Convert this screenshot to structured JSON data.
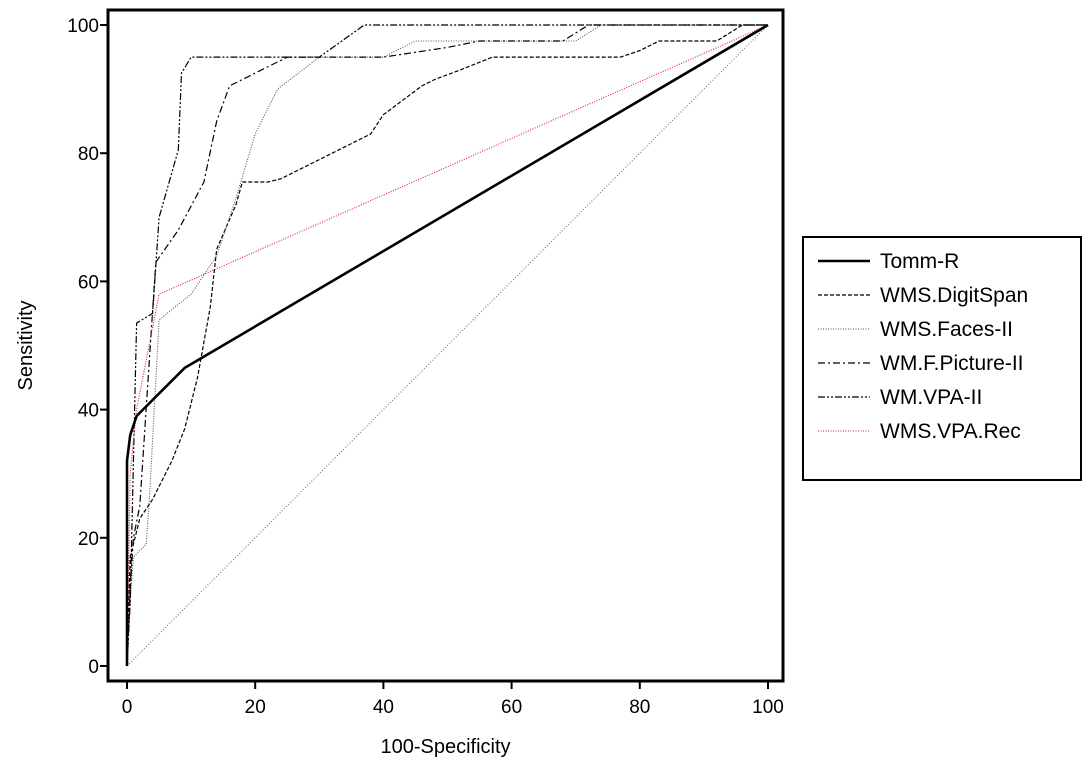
{
  "chart_data": {
    "type": "line",
    "title": "",
    "xlabel": "100-Specificity",
    "ylabel": "Sensitivity",
    "xlim": [
      0,
      100
    ],
    "ylim": [
      0,
      100
    ],
    "xticks": [
      "0",
      "20",
      "40",
      "60",
      "80",
      "100"
    ],
    "yticks": [
      "0",
      "20",
      "40",
      "60",
      "80",
      "100"
    ],
    "grid": false,
    "legend_position": "right",
    "reference_line": {
      "x": [
        0,
        100
      ],
      "y": [
        0,
        100
      ],
      "style": "dotted"
    },
    "series": [
      {
        "name": "Tomm-R",
        "color": "#000000",
        "style": "solid-thick",
        "x": [
          0,
          0,
          0.5,
          1.5,
          9,
          100
        ],
        "y": [
          0,
          32,
          36,
          39,
          46.5,
          100
        ]
      },
      {
        "name": "WMS.DigitSpan",
        "color": "#000000",
        "style": "dashed",
        "x": [
          0,
          0.5,
          2,
          4,
          7,
          9,
          11,
          13,
          14,
          17,
          18,
          22,
          24,
          30,
          38,
          40,
          46,
          48,
          52,
          57,
          60,
          70,
          77,
          80,
          83,
          86,
          92,
          96,
          100
        ],
        "y": [
          0,
          17,
          23,
          26,
          32,
          37,
          45,
          56,
          65,
          72,
          75.5,
          75.5,
          76,
          79,
          83,
          86,
          90.5,
          91.5,
          93,
          95,
          95,
          95,
          95,
          96,
          97.5,
          97.5,
          97.5,
          100,
          100
        ]
      },
      {
        "name": "WMS.Faces-II",
        "color": "#555555",
        "style": "dotted",
        "x": [
          0,
          0.5,
          1,
          3,
          3.5,
          5,
          10,
          14,
          17,
          20,
          22,
          23.5,
          30,
          35,
          40,
          45,
          50,
          55,
          60,
          65,
          70,
          74,
          78,
          100
        ],
        "y": [
          0,
          10,
          17,
          19,
          26,
          54,
          58,
          64,
          73,
          83,
          87,
          90,
          95,
          95,
          95,
          97.5,
          97.5,
          97.5,
          97.5,
          97.5,
          97.5,
          100,
          100,
          100
        ]
      },
      {
        "name": "WM.F.Picture-II",
        "color": "#000000",
        "style": "dash-dot",
        "x": [
          0,
          0.5,
          1,
          2,
          4.5,
          8,
          12,
          14,
          16,
          20,
          25,
          30,
          40,
          50,
          55,
          62,
          68,
          72,
          80,
          100
        ],
        "y": [
          0,
          12,
          20,
          25,
          63,
          68,
          75.5,
          85,
          90.5,
          92.5,
          95,
          95,
          95,
          96.5,
          97.5,
          97.5,
          97.5,
          100,
          100,
          100
        ]
      },
      {
        "name": "WM.VPA-II",
        "color": "#000000",
        "style": "dash-dot-dot",
        "x": [
          0,
          0.5,
          1.5,
          4,
          5,
          8,
          8.5,
          10,
          13,
          20,
          25,
          30,
          37,
          40,
          50,
          60,
          70,
          80,
          100
        ],
        "y": [
          0,
          10,
          53.5,
          55,
          70,
          80.5,
          92.5,
          95,
          95,
          95,
          95,
          95,
          100,
          100,
          100,
          100,
          100,
          100,
          100
        ]
      },
      {
        "name": "WMS.VPA.Rec",
        "color": "#e02020",
        "style": "dotted",
        "x": [
          0,
          0.5,
          1.5,
          5,
          100
        ],
        "y": [
          0,
          30,
          40,
          58,
          100
        ]
      }
    ]
  }
}
